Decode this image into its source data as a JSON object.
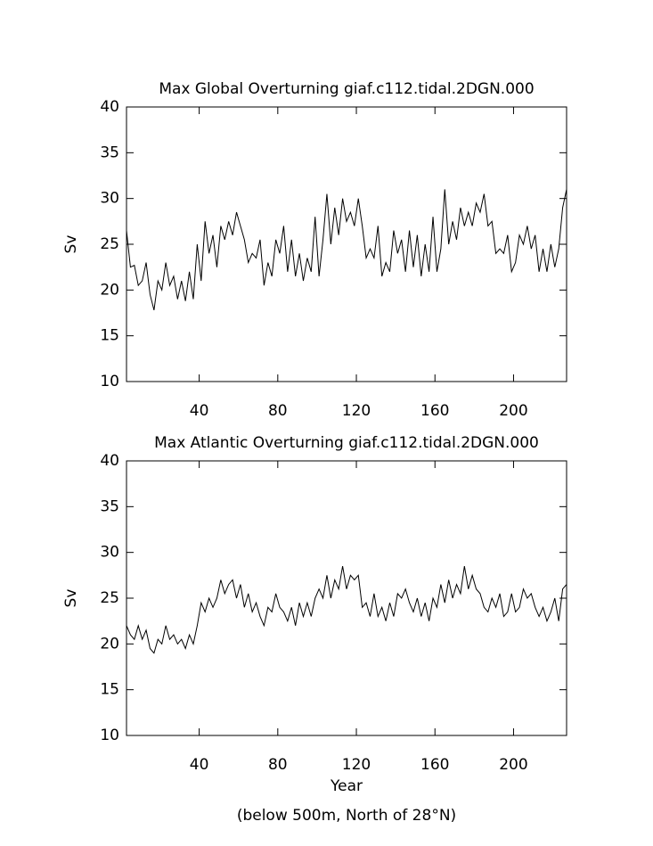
{
  "chart_data": [
    {
      "type": "line",
      "title": "Max Global Overturning giaf.c112.tidal.2DGN.000",
      "ylabel": "Sv",
      "color": "#000000",
      "xlim": [
        3,
        227
      ],
      "ylim": [
        10,
        40
      ],
      "xticks": [
        40,
        80,
        120,
        160,
        200
      ],
      "yticks": [
        10,
        15,
        20,
        25,
        30,
        35,
        40
      ],
      "x": [
        3,
        5,
        7,
        9,
        11,
        13,
        15,
        17,
        19,
        21,
        23,
        25,
        27,
        29,
        31,
        33,
        35,
        37,
        39,
        41,
        43,
        45,
        47,
        49,
        51,
        53,
        55,
        57,
        59,
        61,
        63,
        65,
        67,
        69,
        71,
        73,
        75,
        77,
        79,
        81,
        83,
        85,
        87,
        89,
        91,
        93,
        95,
        97,
        99,
        101,
        103,
        105,
        107,
        109,
        111,
        113,
        115,
        117,
        119,
        121,
        123,
        125,
        127,
        129,
        131,
        133,
        135,
        137,
        139,
        141,
        143,
        145,
        147,
        149,
        151,
        153,
        155,
        157,
        159,
        161,
        163,
        165,
        167,
        169,
        171,
        173,
        175,
        177,
        179,
        181,
        183,
        185,
        187,
        189,
        191,
        193,
        195,
        197,
        199,
        201,
        203,
        205,
        207,
        209,
        211,
        213,
        215,
        217,
        219,
        221,
        223,
        225,
        227
      ],
      "values": [
        26.5,
        22.5,
        22.7,
        20.5,
        21,
        23,
        19.5,
        17.8,
        21,
        20,
        23,
        20.5,
        21.5,
        19,
        21,
        18.8,
        22,
        19,
        25,
        21,
        27.5,
        24,
        26,
        22.5,
        27,
        25.5,
        27.5,
        26,
        28.5,
        27,
        25.5,
        23,
        24,
        23.5,
        25.5,
        20.5,
        23,
        21.5,
        25.5,
        24,
        27,
        22,
        25.5,
        21.5,
        24,
        21,
        23.5,
        22,
        28,
        21.5,
        25.5,
        30.5,
        25,
        29,
        26,
        30,
        27.5,
        28.5,
        27,
        30,
        27,
        23.5,
        24.5,
        23.5,
        27,
        21.5,
        23,
        22,
        26.5,
        24,
        25.5,
        22,
        26.5,
        22.5,
        26,
        21.5,
        25,
        22,
        28,
        22,
        24.5,
        31,
        25,
        27.5,
        25.5,
        29,
        27,
        28.5,
        27,
        29.5,
        28.5,
        30.5,
        27,
        27.5,
        24,
        24.5,
        24,
        26,
        22,
        23,
        26,
        25,
        27,
        24.5,
        26,
        22,
        24.5,
        22,
        25,
        22.5,
        24.5,
        29,
        31
      ]
    },
    {
      "type": "line",
      "title": "Max Atlantic Overturning giaf.c112.tidal.2DGN.000",
      "ylabel": "Sv",
      "xlabel": "Year",
      "note": "(below 500m, North of 28°N)",
      "color": "#000000",
      "xlim": [
        3,
        227
      ],
      "ylim": [
        10,
        40
      ],
      "xticks": [
        40,
        80,
        120,
        160,
        200
      ],
      "yticks": [
        10,
        15,
        20,
        25,
        30,
        35,
        40
      ],
      "x": [
        3,
        5,
        7,
        9,
        11,
        13,
        15,
        17,
        19,
        21,
        23,
        25,
        27,
        29,
        31,
        33,
        35,
        37,
        39,
        41,
        43,
        45,
        47,
        49,
        51,
        53,
        55,
        57,
        59,
        61,
        63,
        65,
        67,
        69,
        71,
        73,
        75,
        77,
        79,
        81,
        83,
        85,
        87,
        89,
        91,
        93,
        95,
        97,
        99,
        101,
        103,
        105,
        107,
        109,
        111,
        113,
        115,
        117,
        119,
        121,
        123,
        125,
        127,
        129,
        131,
        133,
        135,
        137,
        139,
        141,
        143,
        145,
        147,
        149,
        151,
        153,
        155,
        157,
        159,
        161,
        163,
        165,
        167,
        169,
        171,
        173,
        175,
        177,
        179,
        181,
        183,
        185,
        187,
        189,
        191,
        193,
        195,
        197,
        199,
        201,
        203,
        205,
        207,
        209,
        211,
        213,
        215,
        217,
        219,
        221,
        223,
        225,
        227
      ],
      "values": [
        22,
        21,
        20.5,
        22,
        20.5,
        21.5,
        19.5,
        19,
        20.5,
        20,
        22,
        20.5,
        21,
        20,
        20.5,
        19.5,
        21,
        20,
        22,
        24.5,
        23.5,
        25,
        24,
        25,
        27,
        25.5,
        26.5,
        27,
        25,
        26.5,
        24,
        25.5,
        23.5,
        24.5,
        23,
        22,
        24,
        23.5,
        25.5,
        24,
        23.5,
        22.5,
        24,
        22,
        24.5,
        23,
        24.5,
        23,
        25,
        26,
        25,
        27.5,
        25,
        27,
        26,
        28.5,
        26,
        27.5,
        27,
        27.5,
        24,
        24.5,
        23,
        25.5,
        23,
        24,
        22.5,
        24.5,
        23,
        25.5,
        25,
        26,
        24.5,
        23.5,
        25,
        23,
        24.5,
        22.5,
        25,
        24,
        26.5,
        24.5,
        27,
        25,
        26.5,
        25.5,
        28.5,
        26,
        27.5,
        26,
        25.5,
        24,
        23.5,
        25,
        24,
        25.5,
        23,
        23.5,
        25.5,
        23.5,
        24,
        26,
        25,
        25.5,
        24,
        23,
        24,
        22.5,
        23.5,
        25,
        22.5,
        26,
        26.5
      ]
    }
  ]
}
